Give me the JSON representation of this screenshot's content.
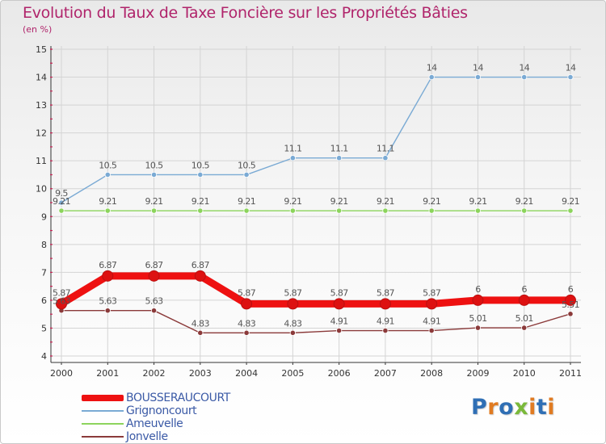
{
  "header": {
    "title": "Evolution du Taux de Taxe Foncière sur les Propriétés Bâties",
    "unit": "(en %)"
  },
  "logo": {
    "text": "Proxiti",
    "colors": [
      "#2f6fb5",
      "#e07b22",
      "#2f6fb5",
      "#7ab93a",
      "#e07b22",
      "#2f6fb5",
      "#e07b22"
    ]
  },
  "chart_data": {
    "type": "line",
    "title": "Evolution du Taux de Taxe Foncière sur les Propriétés Bâties",
    "ylabel": "(en %)",
    "xlabel": "",
    "categories": [
      "2000",
      "2001",
      "2002",
      "2003",
      "2004",
      "2005",
      "2006",
      "2007",
      "2008",
      "2009",
      "2010",
      "2011"
    ],
    "ylim": [
      4,
      15
    ],
    "yticks": [
      4,
      5,
      6,
      7,
      8,
      9,
      10,
      11,
      12,
      13,
      14,
      15
    ],
    "grid": true,
    "legend": "bottom-left",
    "series": [
      {
        "name": "BOUSSERAUCOURT",
        "color": "#ee1111",
        "emphasis": true,
        "values": [
          5.87,
          6.87,
          6.87,
          6.87,
          5.87,
          5.87,
          5.87,
          5.87,
          5.87,
          6,
          6,
          6
        ],
        "labels": [
          "5.87",
          "6.87",
          "6.87",
          "6.87",
          "5.87",
          "5.87",
          "5.87",
          "5.87",
          "5.87",
          "6",
          "6",
          "6"
        ]
      },
      {
        "name": "Grignoncourt",
        "color": "#7aaad4",
        "emphasis": false,
        "values": [
          9.5,
          10.5,
          10.5,
          10.5,
          10.5,
          11.1,
          11.1,
          11.1,
          14,
          14,
          14,
          14
        ],
        "labels": [
          "9.5",
          "10.5",
          "10.5",
          "10.5",
          "10.5",
          "11.1",
          "11.1",
          "11.1",
          "14",
          "14",
          "14",
          "14"
        ]
      },
      {
        "name": "Ameuvelle",
        "color": "#8cd45c",
        "emphasis": false,
        "values": [
          9.21,
          9.21,
          9.21,
          9.21,
          9.21,
          9.21,
          9.21,
          9.21,
          9.21,
          9.21,
          9.21,
          9.21
        ],
        "labels": [
          "9.21",
          "9.21",
          "9.21",
          "9.21",
          "9.21",
          "9.21",
          "9.21",
          "9.21",
          "9.21",
          "9.21",
          "9.21",
          "9.21"
        ]
      },
      {
        "name": "Jonvelle",
        "color": "#8b3a3a",
        "emphasis": false,
        "values": [
          5.63,
          5.63,
          5.63,
          4.83,
          4.83,
          4.83,
          4.91,
          4.91,
          4.91,
          5.01,
          5.01,
          5.51
        ],
        "labels": [
          "5.63",
          "5.63",
          "5.63",
          "4.83",
          "4.83",
          "4.83",
          "4.91",
          "4.91",
          "4.91",
          "5.01",
          "5.01",
          "5.51"
        ]
      }
    ]
  }
}
